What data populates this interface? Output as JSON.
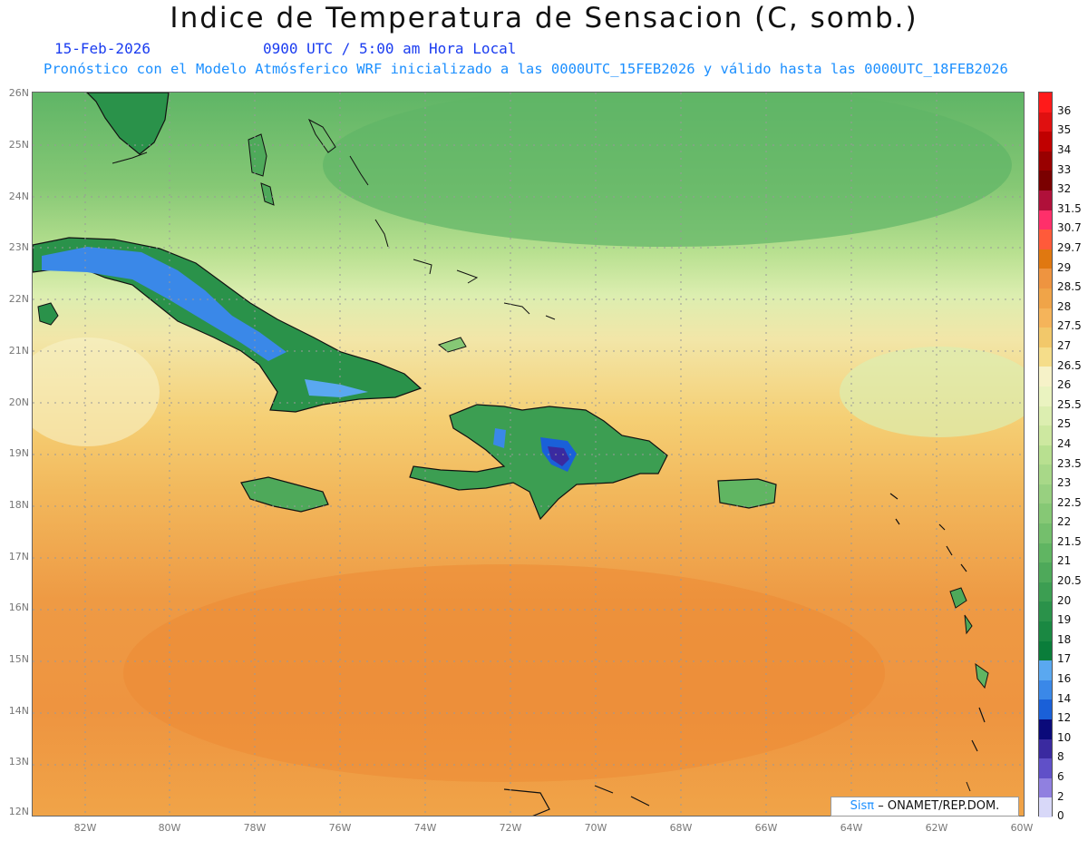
{
  "header": {
    "title": "Indice de Temperatura de Sensacion (C, somb.)",
    "date": "15-Feb-2026",
    "time": "0900 UTC / 5:00 am Hora Local",
    "subtitle": "Pronóstico con el Modelo Atmósferico WRF inicializado a las 0000UTC_15FEB2026 y válido hasta las  0000UTC_18FEB2026"
  },
  "axes": {
    "lat_labels": [
      "26N",
      "25N",
      "24N",
      "23N",
      "22N",
      "21N",
      "20N",
      "19N",
      "18N",
      "17N",
      "16N",
      "15N",
      "14N",
      "13N",
      "12N"
    ],
    "lon_labels": [
      "82W",
      "80W",
      "78W",
      "76W",
      "74W",
      "72W",
      "70W",
      "68W",
      "66W",
      "64W",
      "62W",
      "60W"
    ]
  },
  "legend": {
    "levels": [
      "36",
      "35",
      "34",
      "33",
      "32",
      "31.5",
      "30.7",
      "29.7",
      "29",
      "28.5",
      "28",
      "27.5",
      "27",
      "26.5",
      "26",
      "25.5",
      "25",
      "24",
      "23.5",
      "23",
      "22.5",
      "22",
      "21.5",
      "21",
      "20.5",
      "20",
      "19",
      "18",
      "17",
      "16",
      "14",
      "12",
      "10",
      "8",
      "6",
      "2",
      "0"
    ],
    "colors": [
      "#ff1a1a",
      "#e01010",
      "#c00000",
      "#990000",
      "#7a0000",
      "#b0103a",
      "#ff2f6a",
      "#ff5a3a",
      "#e07810",
      "#ee9440",
      "#f0a448",
      "#f5b45a",
      "#f2c86a",
      "#f5dd8a",
      "#f6f2c8",
      "#eaf3c0",
      "#dceeb0",
      "#cde8a0",
      "#b8e090",
      "#a8d888",
      "#98d080",
      "#86c875",
      "#74bf6c",
      "#60b562",
      "#4ea95a",
      "#3c9e52",
      "#2a924a",
      "#1a8842",
      "#0a7d3a",
      "#5aa8f0",
      "#3a88e8",
      "#1a60d8",
      "#0a0a7a",
      "#3a2aa0",
      "#6050c8",
      "#9080e0",
      "#d8d8f8"
    ]
  },
  "credit": {
    "sis": "Sisπ",
    "text": "– ONAMET/REP.DOM."
  }
}
